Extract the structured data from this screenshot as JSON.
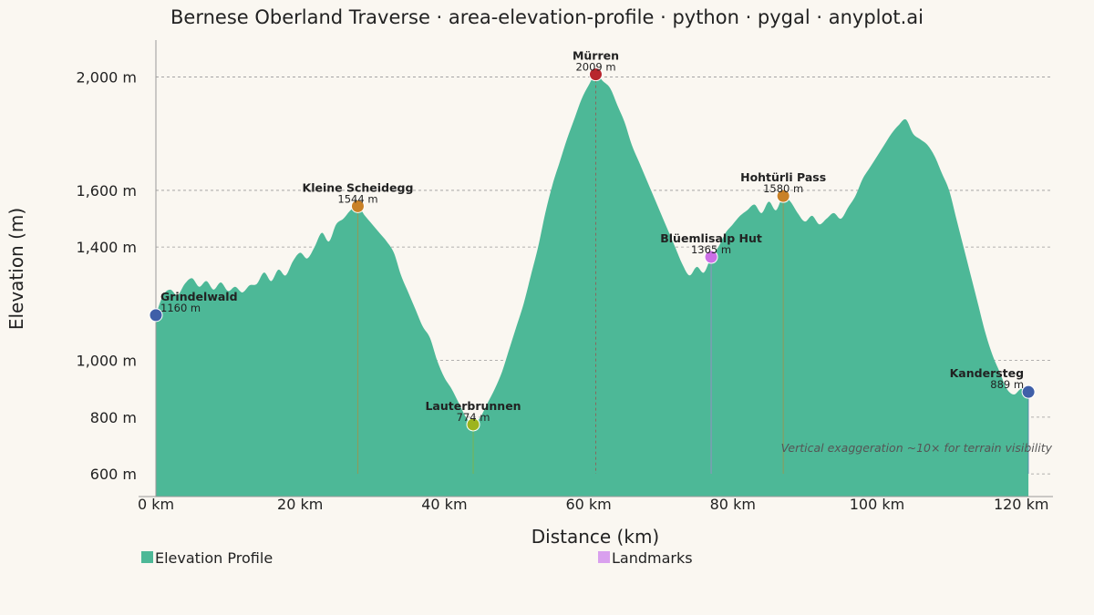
{
  "chart_data": {
    "type": "area",
    "title": "Bernese Oberland Traverse · area-elevation-profile · python · pygal · anyplot.ai",
    "xlabel": "Distance (km)",
    "ylabel": "Elevation (m)",
    "xlim": [
      0,
      122
    ],
    "ylim": [
      520,
      2130
    ],
    "x_ticks": [
      0,
      20,
      40,
      60,
      80,
      100,
      120
    ],
    "x_tick_labels": [
      "0 km",
      "20 km",
      "40 km",
      "60 km",
      "80 km",
      "100 km",
      "120 km"
    ],
    "y_ticks": [
      600,
      800,
      1000,
      1400,
      1600,
      2000
    ],
    "y_tick_labels": [
      "600 m",
      "800 m",
      "1,000 m",
      "1,400 m",
      "1,600 m",
      "2,000 m"
    ],
    "grid": "horizontal dashed",
    "legend_position": "bottom",
    "series": [
      {
        "name": "Elevation Profile",
        "color": "#4DB897",
        "points": [
          [
            0,
            1160
          ],
          [
            1,
            1230
          ],
          [
            2,
            1250
          ],
          [
            3,
            1230
          ],
          [
            4,
            1270
          ],
          [
            5,
            1290
          ],
          [
            6,
            1260
          ],
          [
            7,
            1280
          ],
          [
            8,
            1250
          ],
          [
            9,
            1275
          ],
          [
            10,
            1245
          ],
          [
            11,
            1260
          ],
          [
            12,
            1240
          ],
          [
            13,
            1265
          ],
          [
            14,
            1270
          ],
          [
            15,
            1310
          ],
          [
            16,
            1280
          ],
          [
            17,
            1320
          ],
          [
            18,
            1300
          ],
          [
            19,
            1350
          ],
          [
            20,
            1380
          ],
          [
            21,
            1360
          ],
          [
            22,
            1400
          ],
          [
            23,
            1450
          ],
          [
            24,
            1420
          ],
          [
            25,
            1480
          ],
          [
            26,
            1500
          ],
          [
            27,
            1530
          ],
          [
            28,
            1544
          ],
          [
            29,
            1510
          ],
          [
            30,
            1480
          ],
          [
            31,
            1450
          ],
          [
            32,
            1420
          ],
          [
            33,
            1380
          ],
          [
            34,
            1300
          ],
          [
            35,
            1240
          ],
          [
            36,
            1180
          ],
          [
            37,
            1120
          ],
          [
            38,
            1080
          ],
          [
            39,
            1000
          ],
          [
            40,
            940
          ],
          [
            41,
            900
          ],
          [
            42,
            850
          ],
          [
            43,
            800
          ],
          [
            44,
            774
          ],
          [
            45,
            800
          ],
          [
            46,
            850
          ],
          [
            47,
            900
          ],
          [
            48,
            960
          ],
          [
            49,
            1040
          ],
          [
            50,
            1120
          ],
          [
            51,
            1200
          ],
          [
            52,
            1300
          ],
          [
            53,
            1400
          ],
          [
            54,
            1520
          ],
          [
            55,
            1620
          ],
          [
            56,
            1700
          ],
          [
            57,
            1780
          ],
          [
            58,
            1850
          ],
          [
            59,
            1920
          ],
          [
            60,
            1970
          ],
          [
            61,
            2009
          ],
          [
            62,
            1985
          ],
          [
            63,
            1960
          ],
          [
            64,
            1900
          ],
          [
            65,
            1840
          ],
          [
            66,
            1760
          ],
          [
            67,
            1700
          ],
          [
            68,
            1640
          ],
          [
            69,
            1580
          ],
          [
            70,
            1520
          ],
          [
            71,
            1460
          ],
          [
            72,
            1400
          ],
          [
            73,
            1340
          ],
          [
            74,
            1300
          ],
          [
            75,
            1330
          ],
          [
            76,
            1310
          ],
          [
            77,
            1365
          ],
          [
            78,
            1400
          ],
          [
            79,
            1450
          ],
          [
            80,
            1480
          ],
          [
            81,
            1510
          ],
          [
            82,
            1530
          ],
          [
            83,
            1550
          ],
          [
            84,
            1520
          ],
          [
            85,
            1560
          ],
          [
            86,
            1530
          ],
          [
            87,
            1580
          ],
          [
            88,
            1560
          ],
          [
            89,
            1520
          ],
          [
            90,
            1490
          ],
          [
            91,
            1510
          ],
          [
            92,
            1480
          ],
          [
            93,
            1500
          ],
          [
            94,
            1520
          ],
          [
            95,
            1500
          ],
          [
            96,
            1540
          ],
          [
            97,
            1580
          ],
          [
            98,
            1640
          ],
          [
            99,
            1680
          ],
          [
            100,
            1720
          ],
          [
            101,
            1760
          ],
          [
            102,
            1800
          ],
          [
            103,
            1830
          ],
          [
            104,
            1850
          ],
          [
            105,
            1800
          ],
          [
            106,
            1780
          ],
          [
            107,
            1760
          ],
          [
            108,
            1720
          ],
          [
            109,
            1660
          ],
          [
            110,
            1600
          ],
          [
            111,
            1500
          ],
          [
            112,
            1400
          ],
          [
            113,
            1300
          ],
          [
            114,
            1200
          ],
          [
            115,
            1100
          ],
          [
            116,
            1020
          ],
          [
            117,
            960
          ],
          [
            118,
            900
          ],
          [
            119,
            880
          ],
          [
            120,
            900
          ],
          [
            121,
            889
          ]
        ]
      },
      {
        "name": "Landmarks",
        "color": "#D9A0EE",
        "points": [
          {
            "x": 0,
            "y": 1160,
            "label": "Grindelwald",
            "elev_label": "1160 m",
            "color": "#3F5FA8"
          },
          {
            "x": 28,
            "y": 1544,
            "label": "Kleine Scheidegg",
            "elev_label": "1544 m",
            "color": "#C98127"
          },
          {
            "x": 44,
            "y": 774,
            "label": "Lauterbrunnen",
            "elev_label": "774 m",
            "color": "#9DB41E"
          },
          {
            "x": 61,
            "y": 2009,
            "label": "Mürren",
            "elev_label": "2009 m",
            "color": "#B8262E"
          },
          {
            "x": 77,
            "y": 1365,
            "label": "Blüemlisalp Hut",
            "elev_label": "1365 m",
            "color": "#CC6FE6"
          },
          {
            "x": 87,
            "y": 1580,
            "label": "Hohtürli Pass",
            "elev_label": "1580 m",
            "color": "#C98127"
          },
          {
            "x": 121,
            "y": 889,
            "label": "Kandersteg",
            "elev_label": "889 m",
            "color": "#3F5FA8"
          }
        ]
      }
    ],
    "annotation": "Vertical exaggeration ~10× for terrain visibility"
  }
}
